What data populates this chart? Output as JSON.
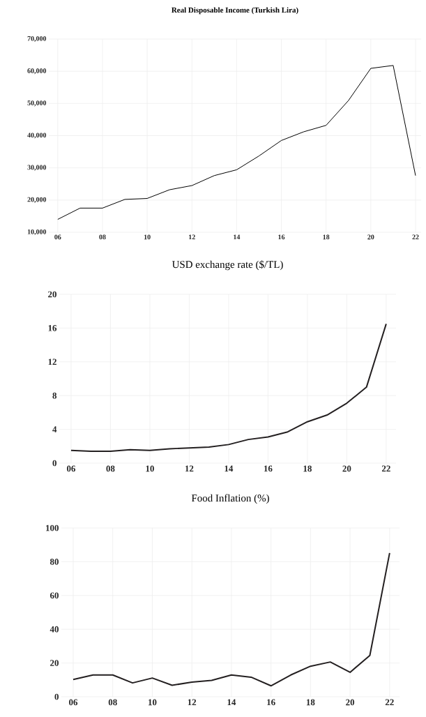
{
  "chart_data": [
    {
      "type": "line",
      "title": "Real Disposable Income (Turkish Lira)",
      "x": [
        2006,
        2007,
        2008,
        2009,
        2010,
        2011,
        2012,
        2013,
        2014,
        2015,
        2016,
        2017,
        2018,
        2019,
        2020,
        2021,
        2022
      ],
      "series": [
        {
          "color": "#000000",
          "values": [
            14000,
            17500,
            17500,
            20200,
            20500,
            23200,
            24500,
            27600,
            29400,
            33700,
            38500,
            41200,
            43200,
            50900,
            60900,
            61800,
            27600
          ]
        }
      ],
      "xlim": [
        2005.6,
        2022.25
      ],
      "ylim": [
        10000,
        70000
      ],
      "xticks": [
        {
          "value": 2006,
          "label": "06"
        },
        {
          "value": 2008,
          "label": "08"
        },
        {
          "value": 2010,
          "label": "10"
        },
        {
          "value": 2012,
          "label": "12"
        },
        {
          "value": 2014,
          "label": "14"
        },
        {
          "value": 2016,
          "label": "16"
        },
        {
          "value": 2018,
          "label": "18"
        },
        {
          "value": 2020,
          "label": "20"
        },
        {
          "value": 2022,
          "label": "22"
        }
      ],
      "yticks": [
        {
          "value": 10000,
          "label": "10,000"
        },
        {
          "value": 20000,
          "label": "20,000"
        },
        {
          "value": 30000,
          "label": "30,000"
        },
        {
          "value": 40000,
          "label": "40,000"
        },
        {
          "value": 50000,
          "label": "50,000"
        },
        {
          "value": 60000,
          "label": "60,000"
        },
        {
          "value": 70000,
          "label": "70,000"
        }
      ],
      "grid": true,
      "line_style": "solid"
    },
    {
      "type": "line",
      "title": "USD exchange rate ($/TL)",
      "x": [
        2006,
        2007,
        2008,
        2009,
        2010,
        2011,
        2012,
        2013,
        2014,
        2015,
        2016,
        2017,
        2018,
        2019,
        2020,
        2021,
        2022
      ],
      "series": [
        {
          "color": "#231f20",
          "values": [
            1.5,
            1.4,
            1.4,
            1.6,
            1.5,
            1.7,
            1.8,
            1.9,
            2.2,
            2.8,
            3.1,
            3.7,
            4.9,
            5.7,
            7.1,
            9.0,
            16.5
          ]
        }
      ],
      "xlim": [
        2005.4,
        2022.5
      ],
      "ylim": [
        0,
        20
      ],
      "xticks": [
        {
          "value": 2006,
          "label": "06"
        },
        {
          "value": 2008,
          "label": "08"
        },
        {
          "value": 2010,
          "label": "10"
        },
        {
          "value": 2012,
          "label": "12"
        },
        {
          "value": 2014,
          "label": "14"
        },
        {
          "value": 2016,
          "label": "16"
        },
        {
          "value": 2018,
          "label": "18"
        },
        {
          "value": 2020,
          "label": "20"
        },
        {
          "value": 2022,
          "label": "22"
        }
      ],
      "yticks": [
        0,
        4,
        8,
        12,
        16,
        20
      ],
      "grid": true,
      "line_style": "solid"
    },
    {
      "type": "line",
      "title": "Food Inflation (%)",
      "x": [
        2006,
        2007,
        2008,
        2009,
        2010,
        2011,
        2012,
        2013,
        2014,
        2015,
        2016,
        2017,
        2018,
        2019,
        2020,
        2021,
        2022
      ],
      "series": [
        {
          "color": "#231f20",
          "values": [
            10.2,
            12.9,
            12.9,
            8.2,
            11.1,
            6.8,
            8.7,
            9.7,
            12.9,
            11.6,
            6.5,
            12.9,
            18.1,
            20.6,
            14.5,
            24.5,
            85.2
          ]
        }
      ],
      "xlim": [
        2005.4,
        2022.5
      ],
      "ylim": [
        0,
        100
      ],
      "xticks": [
        {
          "value": 2006,
          "label": "06"
        },
        {
          "value": 2008,
          "label": "08"
        },
        {
          "value": 2010,
          "label": "10"
        },
        {
          "value": 2012,
          "label": "12"
        },
        {
          "value": 2014,
          "label": "14"
        },
        {
          "value": 2016,
          "label": "16"
        },
        {
          "value": 2018,
          "label": "18"
        },
        {
          "value": 2020,
          "label": "20"
        },
        {
          "value": 2022,
          "label": "22"
        }
      ],
      "yticks": [
        0,
        20,
        40,
        60,
        80,
        100
      ],
      "grid": true,
      "line_style": "solid"
    }
  ]
}
